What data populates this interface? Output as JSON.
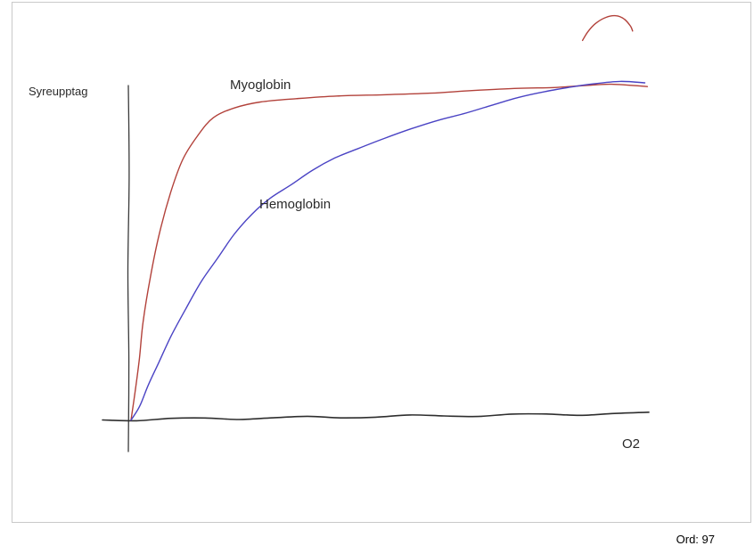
{
  "frame": {
    "border_color": "#c9c9c9",
    "background": "#ffffff"
  },
  "footer": {
    "word_count": "Ord: 97"
  },
  "chart_data": {
    "type": "line",
    "title": "",
    "ylabel": "Syreupptag",
    "xlabel": "O2",
    "x_range": [
      0,
      100
    ],
    "y_range": [
      0,
      100
    ],
    "grid": false,
    "legend": "inline-labels",
    "axis_color": "#3a3a3a",
    "baseline_color": "#2e2e2e",
    "style": "hand-drawn",
    "series": [
      {
        "name": "Myoglobin",
        "color": "#b2413a",
        "shape": "hyperbolic",
        "x": [
          0,
          0.7,
          1.6,
          2.4,
          3.8,
          5.5,
          7.6,
          10,
          13,
          16,
          20,
          25,
          32,
          40,
          49,
          58,
          66,
          75,
          82,
          88,
          93,
          100
        ],
        "y": [
          0,
          8,
          18,
          29,
          42,
          55,
          67,
          77,
          84,
          89,
          92,
          94,
          94.8,
          95.4,
          96,
          96.6,
          97.1,
          97.7,
          98.2,
          98.8,
          98.9,
          98.3
        ]
      },
      {
        "name": "Hemoglobin",
        "color": "#4a43c4",
        "shape": "sigmoidal",
        "x": [
          0,
          1.6,
          3.3,
          5.5,
          7.9,
          10.7,
          13.6,
          16.8,
          20,
          23.5,
          26.9,
          30.9,
          35.2,
          39.6,
          43.9,
          49,
          54.2,
          59.4,
          64.6,
          69.8,
          75,
          80.1,
          85.3,
          89.6,
          94.8,
          99.5
        ],
        "y": [
          0,
          3.9,
          10,
          17.1,
          25,
          32.9,
          40.8,
          47.9,
          54.7,
          60.5,
          65.3,
          69.5,
          73.7,
          77.1,
          80,
          83.2,
          85.8,
          88.2,
          90.5,
          92.9,
          95,
          96.8,
          98.4,
          99.2,
          99.7,
          99.5
        ]
      }
    ],
    "annotations": [
      {
        "name": "stray-red-mark",
        "color": "#b2413a",
        "x": [
          87.5,
          88.5,
          90,
          92,
          94,
          95.6,
          96.8,
          97.2
        ],
        "y": [
          112,
          114.5,
          117,
          118.8,
          119.3,
          118.3,
          116.2,
          114.8
        ]
      }
    ]
  }
}
